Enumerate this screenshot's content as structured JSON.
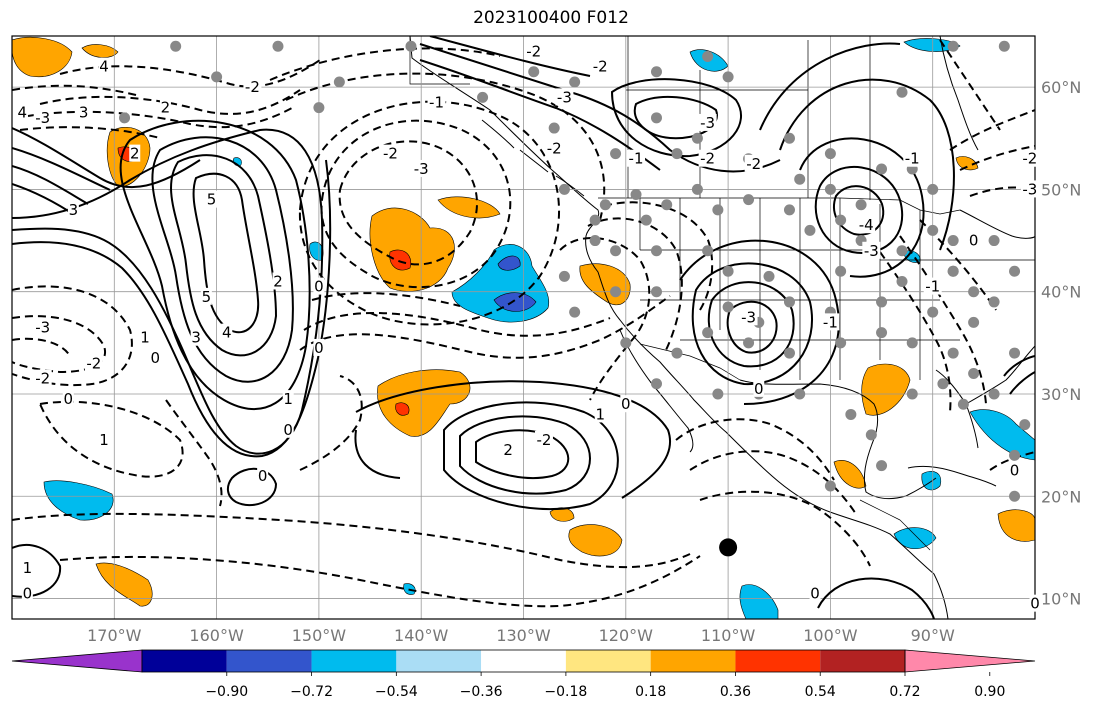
{
  "title": "2023100400 F012",
  "map": {
    "lon_range": [
      -180,
      -80
    ],
    "lat_range": [
      8,
      65
    ],
    "lon_ticks": [
      {
        "value": -170,
        "label": "170°W"
      },
      {
        "value": -160,
        "label": "160°W"
      },
      {
        "value": -150,
        "label": "150°W"
      },
      {
        "value": -140,
        "label": "140°W"
      },
      {
        "value": -130,
        "label": "130°W"
      },
      {
        "value": -120,
        "label": "120°W"
      },
      {
        "value": -110,
        "label": "110°W"
      },
      {
        "value": -100,
        "label": "100°W"
      },
      {
        "value": -90,
        "label": "90°W"
      }
    ],
    "lat_ticks": [
      {
        "value": 60,
        "label": "60°N"
      },
      {
        "value": 50,
        "label": "50°N"
      },
      {
        "value": 40,
        "label": "40°N"
      },
      {
        "value": 30,
        "label": "30°N"
      },
      {
        "value": 20,
        "label": "20°N"
      },
      {
        "value": 10,
        "label": "10°N"
      }
    ],
    "grid": true,
    "center_marker": {
      "lon": -110,
      "lat": 15
    }
  },
  "colorbar": {
    "colors": [
      "#9933cc",
      "#000099",
      "#3355cc",
      "#00bbee",
      "#aaddf5",
      "#ffffff",
      "#ffe680",
      "#ffa500",
      "#ff3300",
      "#b22222",
      "#ff88aa"
    ],
    "tick_labels": [
      "−0.90",
      "−0.72",
      "−0.54",
      "−0.36",
      "−0.18",
      "0.18",
      "0.36",
      "0.54",
      "0.72",
      "0.90"
    ]
  },
  "contour_labels": [
    {
      "text": "4",
      "lon": -179,
      "lat": 57.5
    },
    {
      "text": "4",
      "lon": -171,
      "lat": 62
    },
    {
      "text": "3",
      "lon": -173,
      "lat": 57.5
    },
    {
      "text": "3",
      "lon": -174,
      "lat": 48
    },
    {
      "text": "2",
      "lon": -165,
      "lat": 58
    },
    {
      "text": "2",
      "lon": -168,
      "lat": 53.5
    },
    {
      "text": "5",
      "lon": -160.5,
      "lat": 49
    },
    {
      "text": "5",
      "lon": -161,
      "lat": 39.5
    },
    {
      "text": "4",
      "lon": -159,
      "lat": 36
    },
    {
      "text": "3",
      "lon": -162,
      "lat": 35.5
    },
    {
      "text": "2",
      "lon": -154,
      "lat": 41
    },
    {
      "text": "1",
      "lon": -167,
      "lat": 35.5
    },
    {
      "text": "1",
      "lon": -153,
      "lat": 29.5
    },
    {
      "text": "0",
      "lon": -153,
      "lat": 26.5
    },
    {
      "text": "0",
      "lon": -150,
      "lat": 40.5
    },
    {
      "text": "0",
      "lon": -166,
      "lat": 33.5
    },
    {
      "text": "0",
      "lon": -174.5,
      "lat": 29.5
    },
    {
      "text": "0",
      "lon": -155.5,
      "lat": 22
    },
    {
      "text": "0",
      "lon": -178.5,
      "lat": 10.5
    },
    {
      "text": "1",
      "lon": -178.5,
      "lat": 13
    },
    {
      "text": "1",
      "lon": -171,
      "lat": 25.5
    },
    {
      "text": "-3",
      "lon": -177,
      "lat": 36.5
    },
    {
      "text": "-2",
      "lon": -177,
      "lat": 31.5
    },
    {
      "text": "-2",
      "lon": -172,
      "lat": 33
    },
    {
      "text": "-3",
      "lon": -177,
      "lat": 57
    },
    {
      "text": "-2",
      "lon": -156.5,
      "lat": 60
    },
    {
      "text": "-2",
      "lon": -143,
      "lat": 53.5
    },
    {
      "text": "-3",
      "lon": -140,
      "lat": 52
    },
    {
      "text": "-2",
      "lon": -127,
      "lat": 54
    },
    {
      "text": "-1",
      "lon": -119,
      "lat": 53
    },
    {
      "text": "-2",
      "lon": -129,
      "lat": 63.5
    },
    {
      "text": "-2",
      "lon": -122.5,
      "lat": 62
    },
    {
      "text": "-1",
      "lon": -138.5,
      "lat": 58.5
    },
    {
      "text": "-3",
      "lon": -126,
      "lat": 59
    },
    {
      "text": "-3",
      "lon": -112,
      "lat": 56.5
    },
    {
      "text": "-2",
      "lon": -107.5,
      "lat": 52.5
    },
    {
      "text": "-2",
      "lon": -112,
      "lat": 53
    },
    {
      "text": "-2",
      "lon": -128,
      "lat": 25.5
    },
    {
      "text": "2",
      "lon": -131.5,
      "lat": 24.5
    },
    {
      "text": "1",
      "lon": -122.5,
      "lat": 28
    },
    {
      "text": "0",
      "lon": -120,
      "lat": 29
    },
    {
      "text": "-3",
      "lon": -108,
      "lat": 37.5
    },
    {
      "text": "-3",
      "lon": -96,
      "lat": 44
    },
    {
      "text": "-4",
      "lon": -96.5,
      "lat": 46.5
    },
    {
      "text": "-1",
      "lon": -90,
      "lat": 40.5
    },
    {
      "text": "0",
      "lon": -86,
      "lat": 45
    },
    {
      "text": "-1",
      "lon": -100,
      "lat": 37
    },
    {
      "text": "-1",
      "lon": -92,
      "lat": 53
    },
    {
      "text": "-2",
      "lon": -80.5,
      "lat": 53
    },
    {
      "text": "-3",
      "lon": -80.5,
      "lat": 50
    },
    {
      "text": "0",
      "lon": -107,
      "lat": 30.5
    },
    {
      "text": "0",
      "lon": -101.5,
      "lat": 10.5
    },
    {
      "text": "0",
      "lon": -82,
      "lat": 22.5
    },
    {
      "text": "0",
      "lon": -80,
      "lat": 9.5
    },
    {
      "text": "0",
      "lon": -150,
      "lat": 34.5
    }
  ]
}
